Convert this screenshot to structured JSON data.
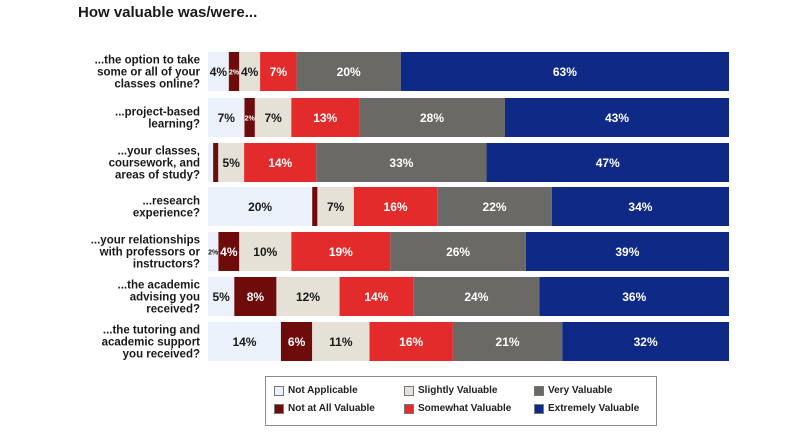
{
  "title": "How valuable was/were...",
  "colors": {
    "Not Applicable": "#eaf1fb",
    "Not at All Valuable": "#6e0b0b",
    "Slightly Valuable": "#e5e1d6",
    "Somewhat Valuable": "#e32b2b",
    "Very Valuable": "#6a6966",
    "Extremely Valuable": "#0e2a86"
  },
  "chart_data": {
    "type": "bar",
    "orientation": "horizontal",
    "stacked": true,
    "normalized": true,
    "categories": [
      [
        "...the option to take",
        "some or all of your",
        "classes online?"
      ],
      [
        "...project-based",
        "learning?"
      ],
      [
        "...your classes,",
        "coursework, and",
        "areas of study?"
      ],
      [
        "...research",
        "experience?"
      ],
      [
        "...your relationships",
        "with professors or",
        "instructors?"
      ],
      [
        "...the academic",
        "advising you",
        "received?"
      ],
      [
        "...the tutoring and",
        "academic support",
        "you received?"
      ]
    ],
    "series": [
      {
        "name": "Not Applicable",
        "values": [
          4,
          7,
          1,
          20,
          2,
          5,
          14
        ],
        "labels": [
          "4%",
          "7%",
          "",
          "20%",
          "2%",
          "5%",
          "14%"
        ]
      },
      {
        "name": "Not at All Valuable",
        "values": [
          2,
          2,
          1,
          1,
          4,
          8,
          6
        ],
        "labels": [
          "2%",
          "2%",
          "",
          "",
          "4%",
          "8%",
          "6%"
        ]
      },
      {
        "name": "Slightly Valuable",
        "values": [
          4,
          7,
          5,
          7,
          10,
          12,
          11
        ],
        "labels": [
          "4%",
          "7%",
          "5%",
          "7%",
          "10%",
          "12%",
          "11%"
        ]
      },
      {
        "name": "Somewhat Valuable",
        "values": [
          7,
          13,
          14,
          16,
          19,
          14,
          16
        ],
        "labels": [
          "7%",
          "13%",
          "14%",
          "16%",
          "19%",
          "14%",
          "16%"
        ]
      },
      {
        "name": "Very Valuable",
        "values": [
          20,
          28,
          33,
          22,
          26,
          24,
          21
        ],
        "labels": [
          "20%",
          "28%",
          "33%",
          "22%",
          "26%",
          "24%",
          "21%"
        ]
      },
      {
        "name": "Extremely Valuable",
        "values": [
          63,
          43,
          47,
          34,
          39,
          36,
          32
        ],
        "labels": [
          "63%",
          "43%",
          "47%",
          "34%",
          "39%",
          "36%",
          "32%"
        ]
      }
    ],
    "legend": {
      "position": "bottom",
      "items": [
        "Not Applicable",
        "Slightly Valuable",
        "Very Valuable",
        "Not at All Valuable",
        "Somewhat Valuable",
        "Extremely Valuable"
      ]
    }
  }
}
